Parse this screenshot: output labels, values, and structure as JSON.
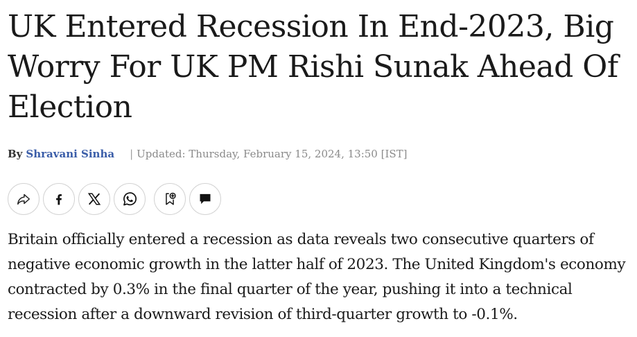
{
  "article": {
    "headline": "UK Entered Recession In End-2023, Big Worry For UK PM Rishi Sunak Ahead Of Election",
    "byline": {
      "by_label": "By",
      "author": "Shravani Sinha",
      "separator": "|",
      "updated": "Updated: Thursday, February 15, 2024, 13:50 [IST]"
    },
    "body": "Britain officially entered a recession as data reveals two consecutive quarters of negative economic growth in the latter half of 2023. The United Kingdom's economy contracted by 0.3% in the final quarter of the year, pushing it into a technical recession after a downward revision of third-quarter growth to -0.1%."
  },
  "share_bar": {
    "buttons": [
      {
        "icon": "share-icon"
      },
      {
        "icon": "facebook-icon"
      },
      {
        "icon": "x-icon"
      },
      {
        "icon": "whatsapp-icon"
      },
      {
        "icon": "bookmark-add-icon"
      },
      {
        "icon": "comment-icon"
      }
    ]
  },
  "colors": {
    "text": "#1a1a1a",
    "author_link": "#3a5da8",
    "muted": "#8a8a8a",
    "button_border": "#d3d3d3"
  }
}
